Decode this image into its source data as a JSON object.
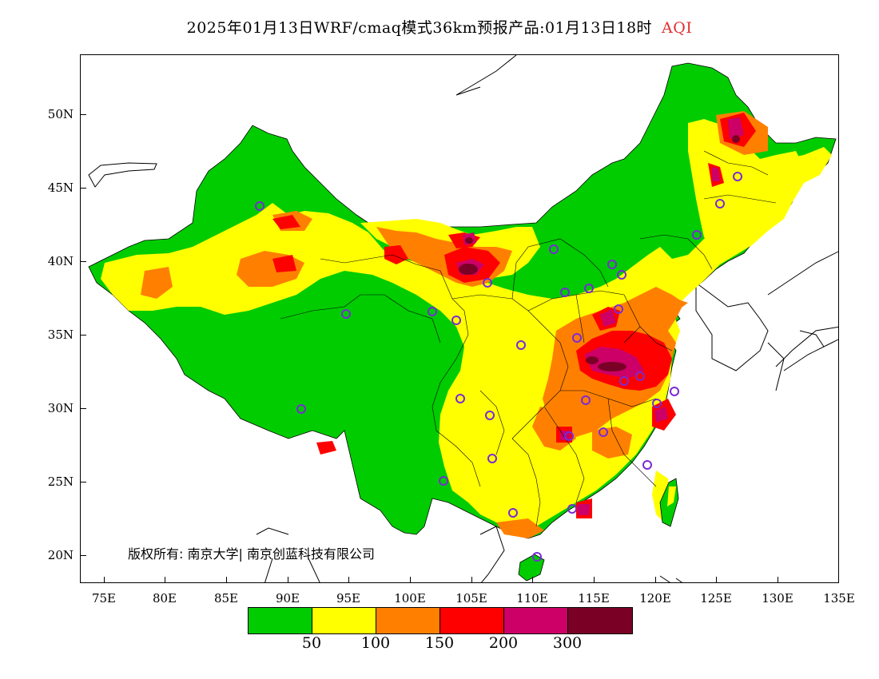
{
  "title": {
    "main": "2025年01月13日WRF/cmaq模式36km预报产品:01月13日18时",
    "variable": "AQI"
  },
  "axes": {
    "lat_labels": [
      "50N",
      "45N",
      "40N",
      "35N",
      "30N",
      "25N",
      "20N"
    ],
    "lon_labels": [
      "75E",
      "80E",
      "85E",
      "90E",
      "95E",
      "100E",
      "105E",
      "110E",
      "115E",
      "120E",
      "125E",
      "130E",
      "135E"
    ],
    "lon_range": [
      73,
      135
    ],
    "lat_range": [
      18,
      54
    ]
  },
  "copyright": "版权所有: 南京大学| 南京创蓝科技有限公司",
  "legend": {
    "colors": [
      "#00cc00",
      "#ffff00",
      "#ff8000",
      "#ff0000",
      "#cc0066",
      "#7a0026"
    ],
    "labels": [
      "50",
      "100",
      "150",
      "200",
      "300"
    ]
  },
  "colors": {
    "good": "#00cc00",
    "moderate": "#ffff00",
    "usg": "#ff8000",
    "unhealthy": "#ff0000",
    "very_unhealthy": "#cc0066",
    "hazardous": "#7a0026",
    "station_ring": "#7a2ad6"
  }
}
